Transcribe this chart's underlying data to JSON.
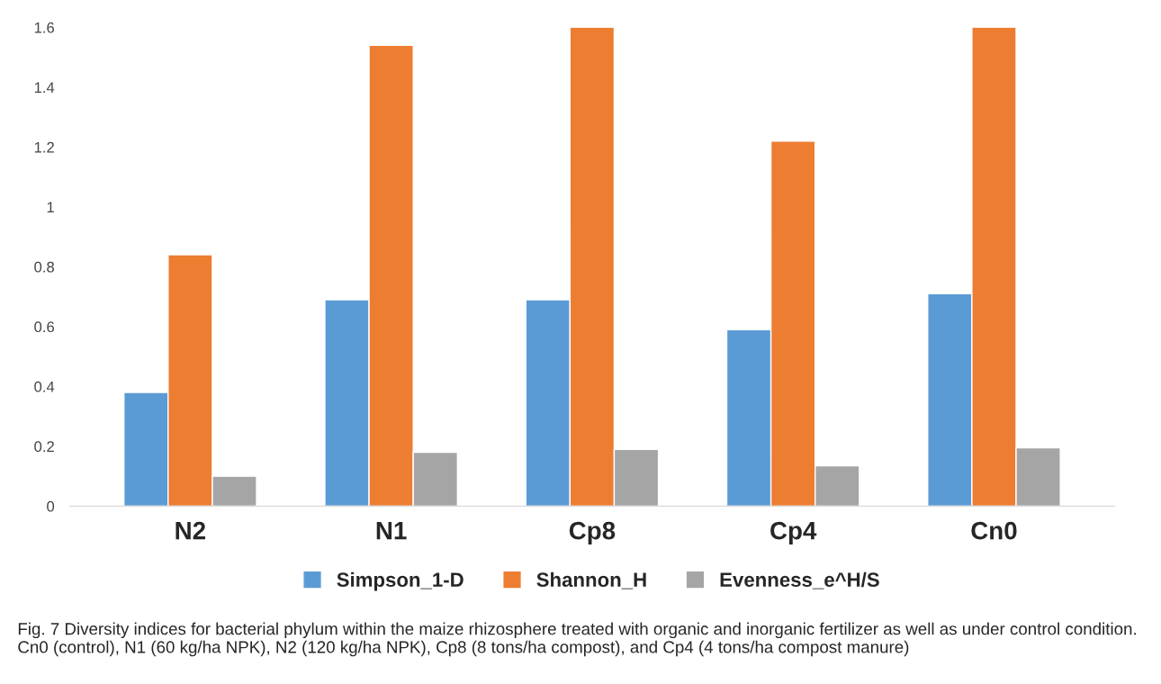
{
  "chart_data": {
    "type": "bar",
    "categories": [
      "N2",
      "N1",
      "Cp8",
      "Cp4",
      "Cn0"
    ],
    "series": [
      {
        "name": "Simpson_1-D",
        "color": "#5b9bd5",
        "values": [
          0.38,
          0.69,
          0.69,
          0.59,
          0.71
        ]
      },
      {
        "name": "Shannon_H",
        "color": "#ed7d31",
        "values": [
          0.84,
          1.54,
          1.6,
          1.22,
          1.6
        ]
      },
      {
        "name": "Evenness_e^H/S",
        "color": "#a5a5a5",
        "values": [
          0.1,
          0.18,
          0.19,
          0.135,
          0.195
        ]
      }
    ],
    "ylim": [
      0,
      1.6
    ],
    "yticks": [
      0,
      0.2,
      0.4,
      0.6,
      0.8,
      1,
      1.2,
      1.4,
      1.6
    ],
    "grid": false,
    "legend": "bottom",
    "annotations": [
      "Fig. 7 Diversity indices for bacterial phylum within the maize rhizosphere treated with organic and inorganic fertilizer as well as under control condition. Cn0 (control), N1 (60 kg/ha NPK), N2 (120 kg/ha NPK), Cp8 (8 tons/ha compost), and Cp4 (4 tons/ha compost manure)"
    ]
  }
}
